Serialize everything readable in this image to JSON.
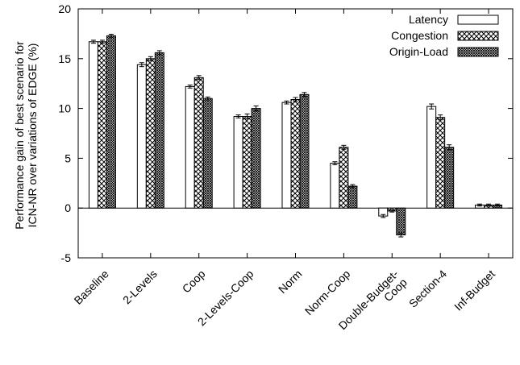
{
  "chart_data": {
    "type": "bar",
    "ylabel_lines": [
      "Performance gain of best scenario for",
      "ICN-NR over variations of EDGE (%)"
    ],
    "ylim": [
      -5,
      20
    ],
    "yticks": [
      -5,
      0,
      5,
      10,
      15,
      20
    ],
    "legend_position": "top-right",
    "grid": false,
    "categories": [
      [
        "Baseline"
      ],
      [
        "2-Levels"
      ],
      [
        "Coop"
      ],
      [
        "2-Levels-Coop"
      ],
      [
        "Norm"
      ],
      [
        "Norm-Coop"
      ],
      [
        "Double-Budget-",
        "Coop"
      ],
      [
        "Section-4"
      ],
      [
        "Inf-Budget"
      ]
    ],
    "series": [
      {
        "name": "Latency",
        "pattern": "white",
        "values": [
          16.7,
          14.4,
          12.2,
          9.2,
          10.6,
          4.5,
          -0.8,
          10.2,
          0.3
        ],
        "errors": [
          0.15,
          0.2,
          0.15,
          0.15,
          0.15,
          0.15,
          0.15,
          0.25,
          0.1
        ]
      },
      {
        "name": "Congestion",
        "pattern": "crosshatch",
        "values": [
          16.7,
          15.0,
          13.1,
          9.2,
          10.9,
          6.1,
          -0.3,
          9.1,
          0.3
        ],
        "errors": [
          0.15,
          0.2,
          0.2,
          0.25,
          0.2,
          0.2,
          0.1,
          0.25,
          0.1
        ]
      },
      {
        "name": "Origin-Load",
        "pattern": "dense-crosshatch",
        "values": [
          17.3,
          15.6,
          11.0,
          10.0,
          11.4,
          2.2,
          -2.7,
          6.1,
          0.3
        ],
        "errors": [
          0.15,
          0.2,
          0.15,
          0.25,
          0.2,
          0.15,
          0.2,
          0.25,
          0.1
        ]
      }
    ]
  }
}
